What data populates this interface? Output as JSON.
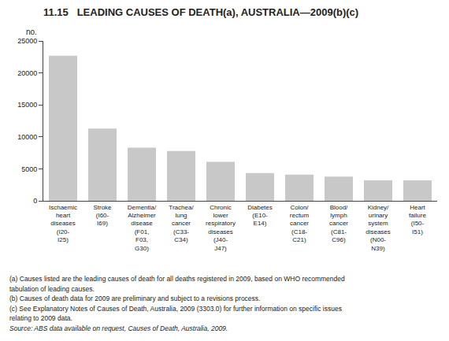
{
  "chart_data": {
    "type": "bar",
    "title": "11.15   LEADING CAUSES OF DEATH(a), AUSTRALIA—2009(b)(c)",
    "ylabel": "no.",
    "categories": [
      "Ischaemic\nheart\ndiseases\n(I20-\nI25)",
      "Stroke\n(I60-\nI69)",
      "Dementia/\nAlzheimer\ndisease\n(F01,\nF03,\nG30)",
      "Trachea/\nlung\ncancer\n(C33-\nC34)",
      "Chronic\nlower\nrespiratory\ndiseases\n(J40-\nJ47)",
      "Diabetes\n(E10-\nE14)",
      "Colon/\nrectum\ncancer\n(C18-\nC21)",
      "Blood/\nlymph\ncancer\n(C81-\nC96)",
      "Kidney/\nurinary\nsystem\ndiseases\n(N00-\nN39)",
      "Heart\nfailure\n(I50-\nI51)"
    ],
    "values": [
      22700,
      11300,
      8300,
      7800,
      6100,
      4350,
      4100,
      3800,
      3200,
      3200
    ],
    "color": "#c8c8c8",
    "ylim": [
      0,
      25000
    ],
    "yticks": [
      0,
      5000,
      10000,
      15000,
      20000,
      25000
    ],
    "grid": false,
    "annotations": [
      "(a) Causes listed are the leading causes of death for all deaths registered in 2009, based on WHO recommended",
      "tabulation of leading causes.",
      "(b) Causes of death data for 2009 are preliminary and subject to a revisions process.",
      "(c) See Explanatory Notes of Causes of Death, Australia, 2009 (3303.0) for further information on specific issues",
      "relating to 2009 data.",
      "Source: ABS data available on request, Causes of Death, Australia, 2009."
    ]
  }
}
